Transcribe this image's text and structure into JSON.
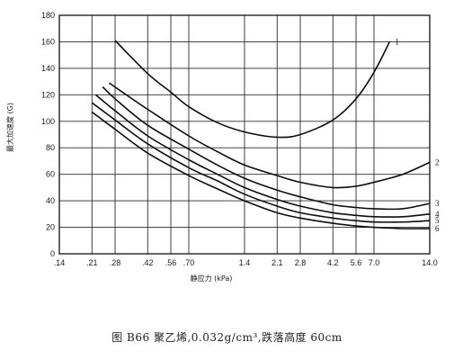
{
  "chart_data": {
    "type": "line",
    "xlabel": "静应力 (kPa)",
    "ylabel": "最大加速度 (G)",
    "x_scale": "log",
    "xlim": [
      0.14,
      14.0
    ],
    "ylim": [
      0,
      180
    ],
    "x_ticks": [
      0.14,
      0.21,
      0.28,
      0.42,
      0.56,
      0.7,
      1.4,
      2.1,
      2.8,
      4.2,
      5.6,
      7.0,
      14.0
    ],
    "x_tick_labels": [
      ".14",
      ".21",
      ".28",
      ".42",
      ".56",
      ".70",
      "1.4",
      "2.1",
      "2.8",
      "4.2",
      "5.6",
      "7.0",
      "14.0"
    ],
    "y_ticks": [
      0,
      20,
      40,
      60,
      80,
      100,
      120,
      140,
      160,
      180
    ],
    "y_tick_labels": [
      "0",
      "20",
      "40",
      "60",
      "80",
      "100",
      "120",
      "140",
      "160",
      "180"
    ],
    "grid": true,
    "series": [
      {
        "name": "1",
        "x": [
          0.28,
          0.42,
          0.56,
          0.7,
          1.0,
          1.4,
          2.1,
          2.8,
          4.2,
          5.6,
          7.0,
          8.5
        ],
        "y": [
          161,
          136,
          122,
          111,
          99,
          92,
          88,
          90,
          101,
          117,
          137,
          160
        ]
      },
      {
        "name": "2",
        "x": [
          0.26,
          0.42,
          0.7,
          1.0,
          1.4,
          2.1,
          2.8,
          4.2,
          5.6,
          7.0,
          10.0,
          14.0
        ],
        "y": [
          129,
          109,
          89,
          77,
          67,
          59,
          54,
          50,
          51,
          54,
          60,
          69
        ]
      },
      {
        "name": "3",
        "x": [
          0.24,
          0.28,
          0.42,
          0.7,
          1.0,
          1.4,
          2.1,
          2.8,
          4.2,
          5.6,
          7.0,
          10.0,
          14.0
        ],
        "y": [
          126,
          117,
          97,
          79,
          67,
          57,
          48,
          43,
          37,
          35,
          34,
          34,
          38
        ]
      },
      {
        "name": "4",
        "x": [
          0.22,
          0.28,
          0.42,
          0.7,
          1.0,
          1.4,
          2.1,
          2.8,
          4.2,
          5.6,
          7.0,
          10.0,
          14.0
        ],
        "y": [
          120,
          108,
          89,
          71,
          60,
          50,
          41,
          36,
          31,
          29,
          28,
          28,
          30
        ]
      },
      {
        "name": "5",
        "x": [
          0.21,
          0.28,
          0.42,
          0.7,
          1.0,
          1.4,
          2.1,
          2.8,
          4.2,
          5.6,
          7.0,
          10.0,
          14.0
        ],
        "y": [
          114,
          101,
          83,
          65,
          55,
          45,
          36,
          31,
          27,
          25,
          24,
          24,
          25
        ]
      },
      {
        "name": "6",
        "x": [
          0.21,
          0.28,
          0.42,
          0.7,
          1.0,
          1.4,
          2.1,
          2.8,
          4.2,
          5.6,
          7.0,
          10.0,
          14.0
        ],
        "y": [
          107,
          94,
          76,
          59,
          49,
          40,
          31,
          27,
          23,
          21,
          20,
          19,
          19
        ]
      }
    ]
  },
  "caption": "图 B66   聚乙烯,0.032g/cm³,跌落高度 60cm"
}
